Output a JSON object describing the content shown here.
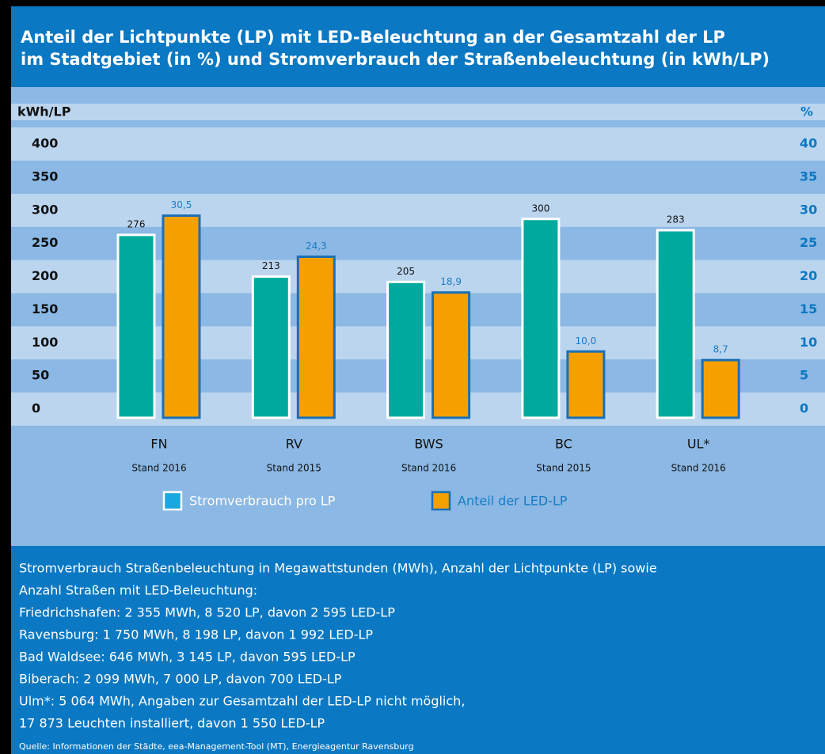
{
  "chart_data": {
    "type": "bar",
    "title": [
      "Anteil der Lichtpunkte (LP) mit LED-Beleuchtung an der Gesamtzahl der LP",
      "im Stadtgebiet (in %) und Stromverbrauch der Straßenbeleuchtung (in kWh/LP)"
    ],
    "ylabel": "kWh/LP",
    "y2label": "%",
    "categories": [
      "FN",
      "RV",
      "BWS",
      "BC",
      "UL*"
    ],
    "category_notes": [
      "Stand 2016",
      "Stand 2015",
      "Stand 2016",
      "Stand 2015",
      "Stand 2016"
    ],
    "series": [
      {
        "name": "Stromverbrauch pro LP",
        "color": "#00a99d",
        "values": [
          276,
          213,
          205,
          300,
          283
        ]
      },
      {
        "name": "Anteil der LED-LP",
        "color": "#f5a000",
        "axis": "y2",
        "values": [
          30.5,
          24.3,
          18.9,
          10.0,
          8.7
        ],
        "value_labels": [
          "30,5",
          "24,3",
          "18,9",
          "10,0",
          "8,7"
        ]
      }
    ],
    "ylim": [
      0,
      400
    ],
    "yticks": [
      0,
      50,
      100,
      150,
      200,
      250,
      300,
      350,
      400
    ],
    "y2lim": [
      0,
      40
    ],
    "y2ticks": [
      0,
      5,
      10,
      15,
      20,
      25,
      30,
      35,
      40
    ],
    "footnote": [
      "Stromverbrauch Straßenbeleuchtung in Megawattstunden (MWh), Anzahl der Lichtpunkte (LP) sowie",
      "Anzahl Straßen mit LED-Beleuchtung:",
      "Friedrichshafen:  2 355 MWh, 8 520 LP, davon 2 595 LED-LP",
      "Ravensburg:  1 750 MWh, 8 198 LP, davon 1 992 LED-LP",
      "Bad Waldsee:  646 MWh, 3 145 LP, davon 595 LED-LP",
      "Biberach: 2 099 MWh, 7 000 LP, davon 700 LED-LP",
      "Ulm*: 5 064 MWh, Angaben zur Gesamtzahl der LED-LP nicht möglich,",
      "17 873 Leuchten installiert, davon  1 550 LED-LP"
    ],
    "source": "Quelle: Informationen der Städte, eea-Management-Tool (MT), Energieagentur Ravensburg"
  }
}
